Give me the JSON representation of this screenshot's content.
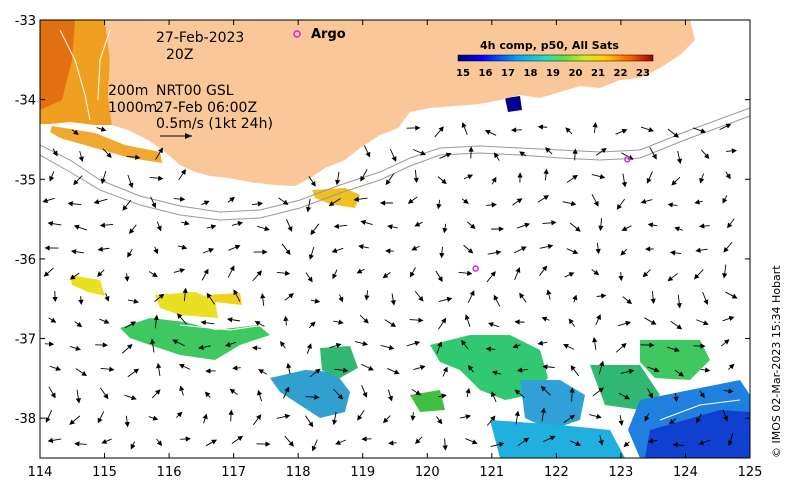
{
  "map": {
    "lon_range": [
      114,
      125
    ],
    "lat_range": [
      -38.5,
      -33
    ],
    "lon_ticks": [
      "114",
      "115",
      "116",
      "117",
      "118",
      "119",
      "120",
      "121",
      "122",
      "123",
      "124",
      "125"
    ],
    "lat_ticks": [
      "-33",
      "-34",
      "-35",
      "-36",
      "-37",
      "-38"
    ],
    "date_label": "27-Feb-2023",
    "time_label": "20Z",
    "isobath_label_200": "200m",
    "isobath_label_1000": "1000m",
    "product_label": "NRT00 GSL",
    "product_time": "27-Feb 06:00Z",
    "scale_label": "0.5m/s (1kt 24h)",
    "argo_label": "Argo",
    "colorbar_title": "4h comp, p50, All Sats",
    "colorbar_ticks": [
      "15",
      "16",
      "17",
      "18",
      "19",
      "20",
      "21",
      "22",
      "23"
    ],
    "credit": "© IMOS 02-Mar-2023 15:34 Hobart",
    "colors": {
      "land": "#fac898",
      "argo": "#e020e0",
      "arrow": "#000000"
    },
    "argo_floats": [
      {
        "lon": 123.1,
        "lat": -34.75
      },
      {
        "lon": 120.75,
        "lat": -36.12
      }
    ]
  }
}
